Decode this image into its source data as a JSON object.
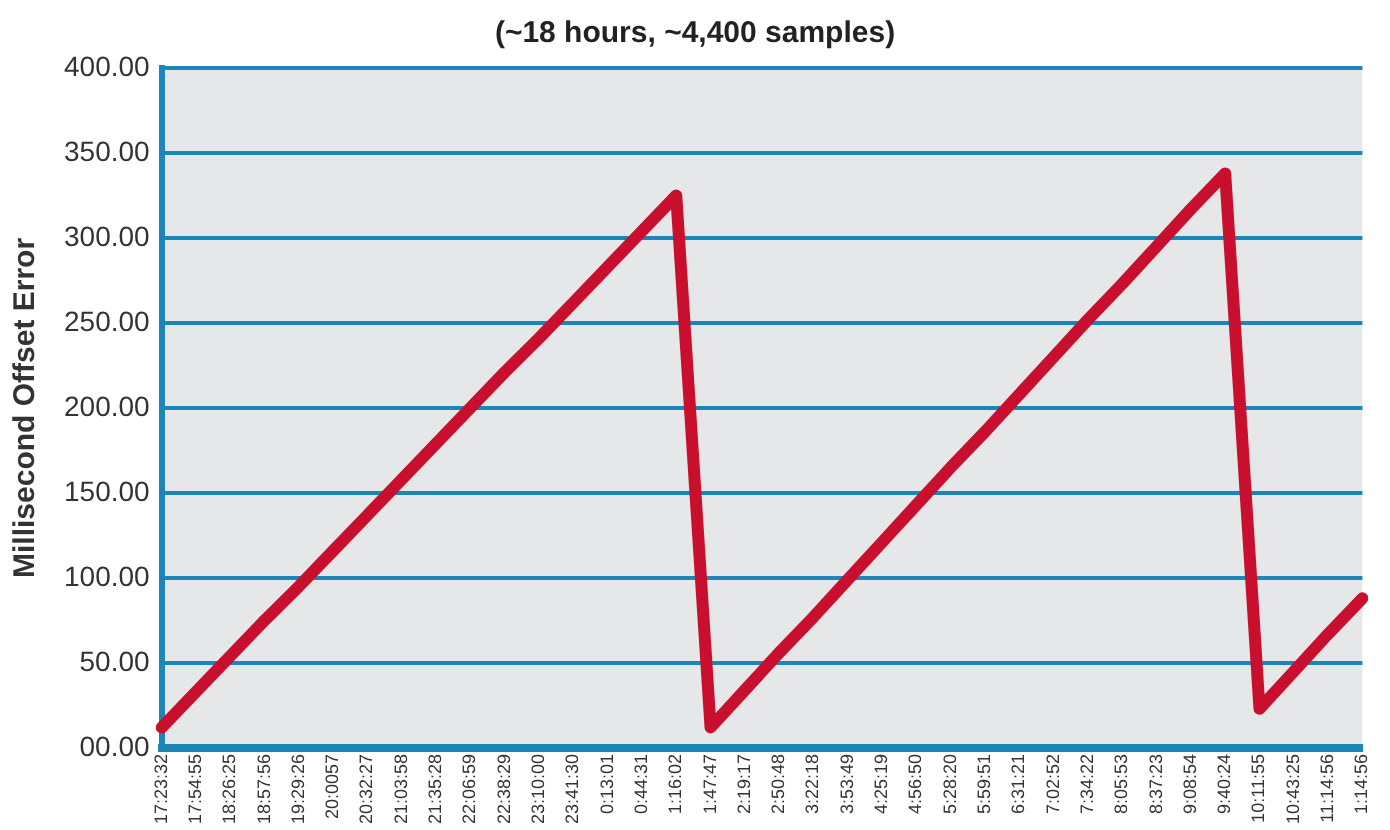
{
  "chart_data": {
    "type": "line",
    "title": "(~18 hours, ~4,400 samples)",
    "ylabel": "Millisecond Offset Error",
    "categories": [
      "17:23:32",
      "17:54:55",
      "18:26:25",
      "18:57:56",
      "19:29:26",
      "20:0057",
      "20:32:27",
      "21:03:58",
      "21:35:28",
      "22:06:59",
      "22:38:29",
      "23:10:00",
      "23:41:30",
      "0:13:01",
      "0:44:31",
      "1:16:02",
      "1:47:47",
      "2:19:17",
      "2:50:48",
      "3:22:18",
      "3:53:49",
      "4:25:19",
      "4:56:50",
      "5:28:20",
      "5:59:51",
      "6:31:21",
      "7:02:52",
      "7:34:22",
      "8:05:53",
      "8:37:23",
      "9:08:54",
      "9:40:24",
      "10:11:55",
      "10:43:25",
      "11:14:56",
      "1:14:56"
    ],
    "series": [
      {
        "color": "#c8102e",
        "values": [
          12,
          33,
          54,
          75,
          95,
          116,
          137,
          158,
          179,
          200,
          221,
          241,
          262,
          283,
          304,
          325,
          12,
          34,
          56,
          77,
          99,
          121,
          143,
          165,
          186,
          208,
          230,
          252,
          273,
          295,
          317,
          338,
          23,
          45,
          67,
          88
        ]
      }
    ],
    "ylim": [
      0,
      400
    ],
    "yticks": [
      {
        "value": 0,
        "label": "00.00"
      },
      {
        "value": 50,
        "label": "50.00"
      },
      {
        "value": 100,
        "label": "100.00"
      },
      {
        "value": 150,
        "label": "150.00"
      },
      {
        "value": 200,
        "label": "200.00"
      },
      {
        "value": 250,
        "label": "250.00"
      },
      {
        "value": 300,
        "label": "300.00"
      },
      {
        "value": 350,
        "label": "350.00"
      },
      {
        "value": 400,
        "label": "400.00"
      }
    ],
    "grid": "y",
    "legend": false,
    "marker": "none",
    "line_style": "solid"
  }
}
